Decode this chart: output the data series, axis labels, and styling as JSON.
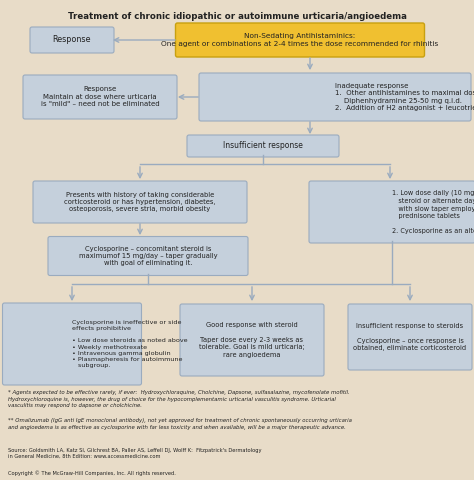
{
  "title": "Treatment of chronic idiopathic or autoimmune urticaria/angioedema",
  "bg_color": "#e8dcc8",
  "box_blue": "#c5d0dc",
  "box_yellow": "#f0c030",
  "box_outline": "#9aabbf",
  "arrow_color": "#9aabbf",
  "text_color": "#222222",
  "footnote1": "* Agents expected to be effective rarely, if ever:  Hydroxychloraquine, Cholchine, Dapsone, sulfasalazine, mycofenolate mofitil.\nHydroxychloroquine is, however, the drug of choice for the hypocomplementamic urticarial vasculitis syndrome. Urticarial\nvasculitis may respond to dapsone or cholchicine.",
  "footnote2": "** Omalizumab (IgG anti IgE monoclonal antibody), not yet approved for treatment of chronic spontaneously occurring urticaria\nand angioedema is as effective as cyclosporine with far less toxicity and when available, will be a major therapeutic advance.",
  "source": "Source: Goldsmith LA, Katz SI, Gilchrest BA, Paller AS, Leffell DJ, Wolff K:  Fitzpatrick's Dermatology\nin General Medicine, 8th Edition: www.accessmedicine.com",
  "copyright": "Copyright © The McGraw-Hill Companies, Inc. All rights reserved."
}
